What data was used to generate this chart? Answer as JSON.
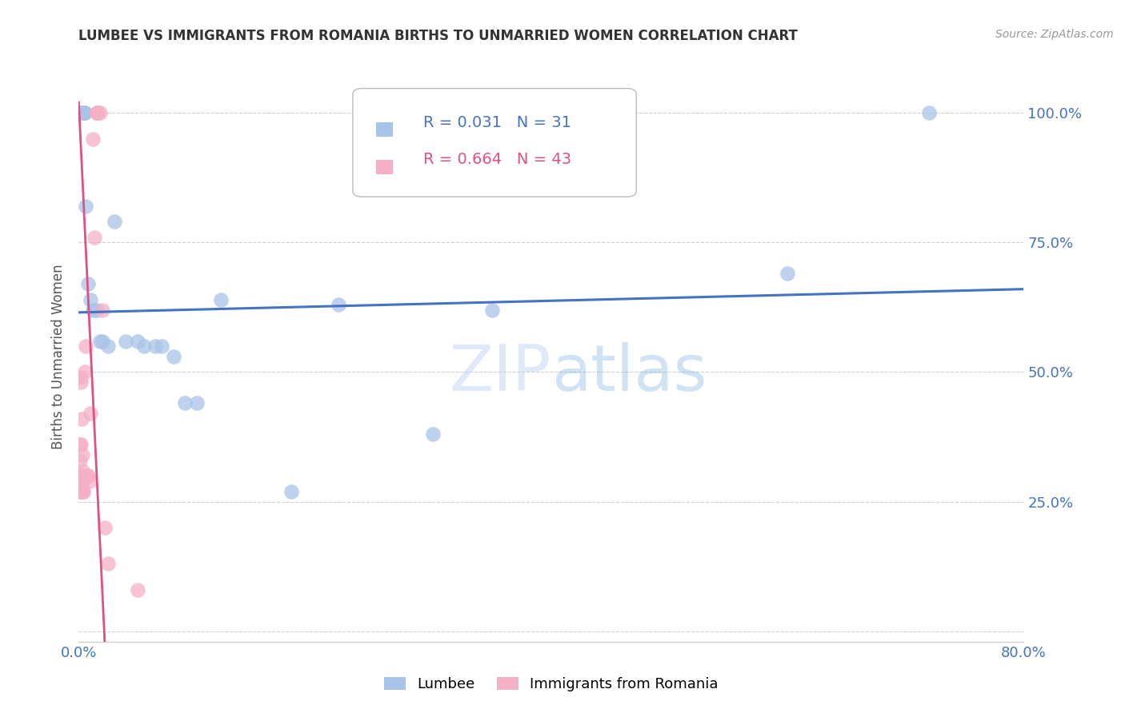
{
  "title": "LUMBEE VS IMMIGRANTS FROM ROMANIA BIRTHS TO UNMARRIED WOMEN CORRELATION CHART",
  "source": "Source: ZipAtlas.com",
  "ylabel": "Births to Unmarried Women",
  "xlim": [
    0.0,
    0.8
  ],
  "ylim": [
    -0.02,
    1.08
  ],
  "lumbee_R": 0.031,
  "lumbee_N": 31,
  "romania_R": 0.664,
  "romania_N": 43,
  "lumbee_color": "#a8c4e8",
  "romania_color": "#f5b0c5",
  "lumbee_line_color": "#4472c4",
  "romania_line_color": "#e05080",
  "watermark": "ZIPatlas",
  "background_color": "#ffffff",
  "lumbee_scatter_x": [
    0.001,
    0.002,
    0.003,
    0.004,
    0.004,
    0.005,
    0.005,
    0.006,
    0.008,
    0.01,
    0.012,
    0.015,
    0.018,
    0.02,
    0.025,
    0.03,
    0.04,
    0.05,
    0.055,
    0.065,
    0.07,
    0.08,
    0.09,
    0.1,
    0.12,
    0.18,
    0.22,
    0.3,
    0.35,
    0.6,
    0.72
  ],
  "lumbee_scatter_y": [
    1.0,
    1.0,
    1.0,
    1.0,
    1.0,
    1.0,
    1.0,
    0.82,
    0.67,
    0.64,
    0.62,
    0.62,
    0.56,
    0.56,
    0.55,
    0.79,
    0.56,
    0.56,
    0.55,
    0.55,
    0.55,
    0.53,
    0.44,
    0.44,
    0.64,
    0.27,
    0.63,
    0.38,
    0.62,
    0.69,
    1.0
  ],
  "romania_scatter_x": [
    0.0002,
    0.0003,
    0.0004,
    0.0005,
    0.0006,
    0.0007,
    0.0008,
    0.001,
    0.001,
    0.001,
    0.0012,
    0.0013,
    0.0014,
    0.0015,
    0.0016,
    0.0018,
    0.002,
    0.002,
    0.0022,
    0.0023,
    0.0025,
    0.003,
    0.003,
    0.003,
    0.0035,
    0.004,
    0.004,
    0.005,
    0.006,
    0.007,
    0.008,
    0.009,
    0.01,
    0.012,
    0.013,
    0.015,
    0.015,
    0.016,
    0.018,
    0.02,
    0.022,
    0.025,
    0.05
  ],
  "romania_scatter_y": [
    0.29,
    0.29,
    0.29,
    0.3,
    0.3,
    0.3,
    0.28,
    0.33,
    0.29,
    0.36,
    0.3,
    0.29,
    0.27,
    0.27,
    0.29,
    0.48,
    0.49,
    0.36,
    0.41,
    0.29,
    0.3,
    0.29,
    0.31,
    0.34,
    0.27,
    0.27,
    0.3,
    0.5,
    0.55,
    0.3,
    0.3,
    0.29,
    0.42,
    0.95,
    0.76,
    1.0,
    1.0,
    1.0,
    1.0,
    0.62,
    0.2,
    0.13,
    0.08
  ],
  "lumbee_trend_x": [
    0.0,
    0.8
  ],
  "lumbee_trend_y": [
    0.615,
    0.66
  ],
  "romania_trend_x": [
    0.0,
    0.022
  ],
  "romania_trend_y": [
    1.02,
    -0.02
  ],
  "ytick_positions": [
    0.0,
    0.25,
    0.5,
    0.75,
    1.0
  ],
  "ytick_labels": [
    "",
    "25.0%",
    "50.0%",
    "75.0%",
    "100.0%"
  ],
  "grid_color": "#d0d0d0",
  "tick_color": "#4472c4"
}
